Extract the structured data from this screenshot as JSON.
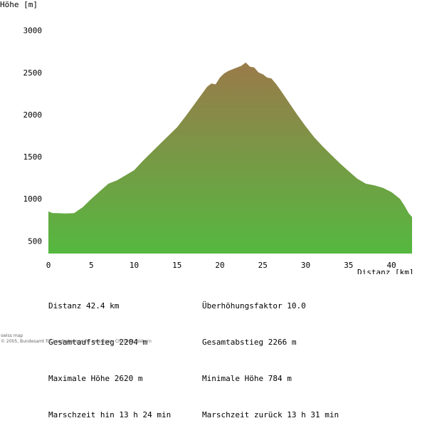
{
  "chart_data": {
    "type": "area",
    "ylabel": "Höhe [m]",
    "xlabel": "Distanz [km]",
    "xlim": [
      0,
      42.4
    ],
    "ylim": [
      350,
      3150
    ],
    "xticks": [
      0,
      5,
      10,
      15,
      20,
      25,
      30,
      35,
      40
    ],
    "yticks": [
      500,
      1000,
      1500,
      2000,
      2500,
      3000
    ],
    "grid": false,
    "fill_colors": {
      "top": "#9a7a4a",
      "bottom": "#55b840"
    },
    "x": [
      0,
      0.5,
      1,
      2,
      3,
      4,
      5,
      6,
      7,
      8,
      9,
      10,
      11,
      12,
      13,
      14,
      15,
      16,
      17,
      18,
      18.5,
      19,
      19.5,
      20,
      20.5,
      21,
      21.5,
      22,
      22.5,
      23,
      23.5,
      24,
      24.5,
      25,
      25.5,
      26,
      26.5,
      27,
      28,
      29,
      30,
      31,
      32,
      33,
      34,
      35,
      36,
      37,
      38,
      39,
      40,
      41,
      41.5,
      42,
      42.4
    ],
    "y": [
      850,
      830,
      830,
      825,
      830,
      900,
      1000,
      1090,
      1180,
      1220,
      1280,
      1340,
      1450,
      1550,
      1650,
      1750,
      1850,
      1980,
      2120,
      2260,
      2330,
      2370,
      2360,
      2440,
      2490,
      2520,
      2540,
      2560,
      2580,
      2620,
      2570,
      2560,
      2500,
      2480,
      2440,
      2430,
      2370,
      2300,
      2150,
      2000,
      1860,
      1730,
      1620,
      1520,
      1420,
      1330,
      1240,
      1180,
      1160,
      1130,
      1080,
      1000,
      920,
      830,
      784
    ]
  },
  "stats": {
    "left": [
      {
        "label": "Distanz",
        "value": "42.4 km"
      },
      {
        "label": "Gesamtaufstieg",
        "value": "2204 m"
      },
      {
        "label": "Maximale Höhe",
        "value": "2620 m"
      },
      {
        "label": "Marschzeit hin",
        "value": "13 h 24 min"
      }
    ],
    "right": [
      {
        "label": "Überhöhungsfaktor",
        "value": "10.0"
      },
      {
        "label": "Gesamtabstieg",
        "value": "2266 m"
      },
      {
        "label": "Minimale Höhe",
        "value": "784 m"
      },
      {
        "label": "Marschzeit zurück",
        "value": "13 h 31 min"
      }
    ]
  },
  "footer": {
    "line1": "swiss map",
    "line2": "© 2005, Bundesamt für Landestopografie swisstopo, CH-3084 Wabern"
  }
}
